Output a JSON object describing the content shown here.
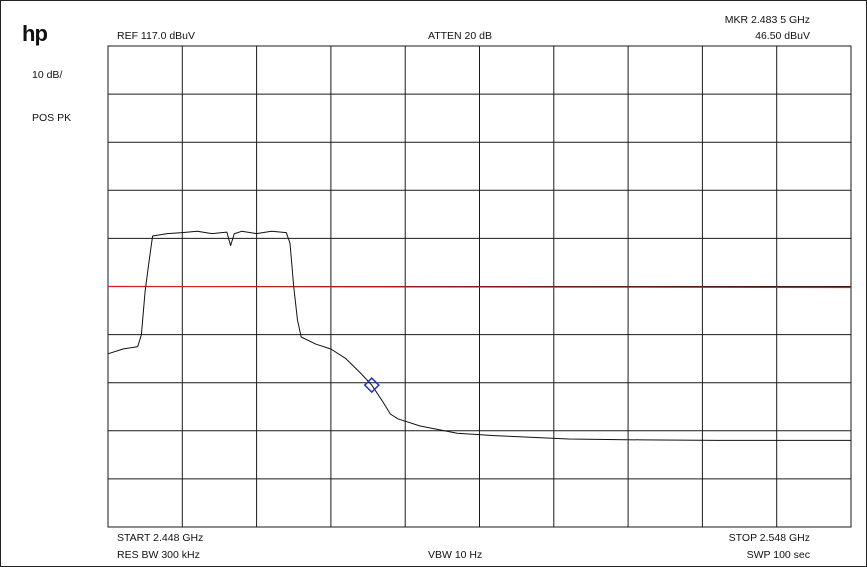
{
  "instrument": {
    "logo": "hp",
    "scale": "10 dB/",
    "detector": "POS PK"
  },
  "header": {
    "ref": "REF  117.0 dBuV",
    "atten": "ATTEN 20 dB",
    "marker_freq": "MKR 2.483 5 GHz",
    "marker_level": "46.50 dBuV"
  },
  "footer": {
    "start": "START 2.448 GHz",
    "stop": "STOP 2.548 GHz",
    "res_bw": "RES BW 300 kHz",
    "vbw": "VBW 10  Hz",
    "sweep": "SWP 100  sec"
  },
  "colors": {
    "trace": "#111111",
    "limit_line": "#d42020",
    "marker": "#1a2ed0",
    "grid": "#1a1a1a"
  },
  "chart_data": {
    "type": "line",
    "xlim": [
      2.448,
      2.548
    ],
    "ylim": [
      17.0,
      117.0
    ],
    "x_unit": "GHz",
    "y_unit": "dBuV",
    "grid": true,
    "grid_divisions": {
      "x": 10,
      "y": 10
    },
    "series": [
      {
        "x": [
          2.448,
          2.45,
          2.452,
          2.4525,
          2.453,
          2.4535,
          2.454,
          2.456,
          2.458,
          2.46,
          2.462,
          2.464,
          2.4645,
          2.465,
          2.4655,
          2.466,
          2.468,
          2.47,
          2.472,
          2.4725,
          2.473,
          2.4735,
          2.474,
          2.476,
          2.478,
          2.48,
          2.482,
          2.4835,
          2.485,
          2.486,
          2.487,
          2.49,
          2.495,
          2.5,
          2.51,
          2.52,
          2.53,
          2.54,
          2.548
        ],
        "y": [
          53.0,
          54.0,
          54.5,
          57.0,
          66.0,
          72.0,
          77.5,
          78.0,
          78.2,
          78.5,
          78.0,
          78.3,
          75.5,
          78.0,
          78.2,
          78.5,
          78.0,
          78.5,
          78.2,
          76.0,
          67.0,
          60.0,
          56.5,
          55.0,
          54.0,
          52.0,
          49.0,
          46.5,
          43.0,
          40.5,
          39.5,
          38.0,
          36.5,
          36.0,
          35.3,
          35.1,
          35.0,
          35.0,
          35.0
        ]
      }
    ],
    "limit_line": {
      "x": [
        2.448,
        2.548
      ],
      "y": [
        67.0,
        66.8
      ]
    },
    "marker": {
      "x": 2.4835,
      "y": 46.5
    }
  }
}
